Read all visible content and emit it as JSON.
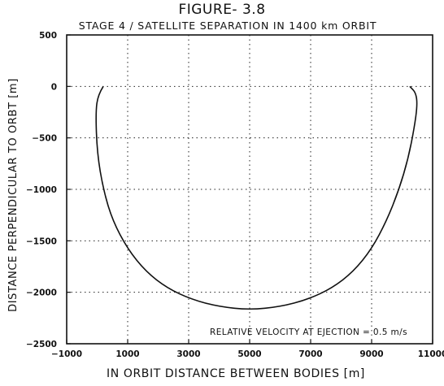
{
  "chart_data": {
    "type": "line",
    "figure_label": "FIGURE- 3.8",
    "title": "STAGE 4 / SATELLITE SEPARATION IN 1400 km ORBIT",
    "xlabel": "IN ORBIT DISTANCE BETWEEN BODIES [m]",
    "ylabel": "DISTANCE PERPENDICULAR TO ORBT [m]",
    "annotation": "RELATIVE VELOCITY AT EJECTION = 0.5 m/s",
    "xlim": [
      -1000,
      11000
    ],
    "ylim": [
      -2500,
      500
    ],
    "x_ticks": [
      -1000,
      1000,
      3000,
      5000,
      7000,
      9000,
      11000
    ],
    "y_ticks": [
      500,
      0,
      -500,
      -1000,
      -1500,
      -2000,
      -2500
    ],
    "grid": true,
    "grid_x": [
      1000,
      3000,
      5000,
      7000,
      9000
    ],
    "grid_y": [
      0,
      -500,
      -1000,
      -1500,
      -2000
    ],
    "series": [
      {
        "x": [
          200,
          30,
          -50,
          0,
          200,
          500,
          1000,
          1600,
          2300,
          3100,
          4000,
          5000,
          6000,
          6900,
          7700,
          8400,
          9000,
          9500,
          9900,
          10200,
          10400,
          10500,
          10450,
          10250
        ],
        "y": [
          0,
          -80,
          -250,
          -650,
          -1000,
          -1300,
          -1580,
          -1800,
          -1960,
          -2070,
          -2140,
          -2170,
          -2140,
          -2070,
          -1960,
          -1800,
          -1580,
          -1300,
          -1000,
          -700,
          -400,
          -180,
          -60,
          0
        ]
      }
    ]
  }
}
